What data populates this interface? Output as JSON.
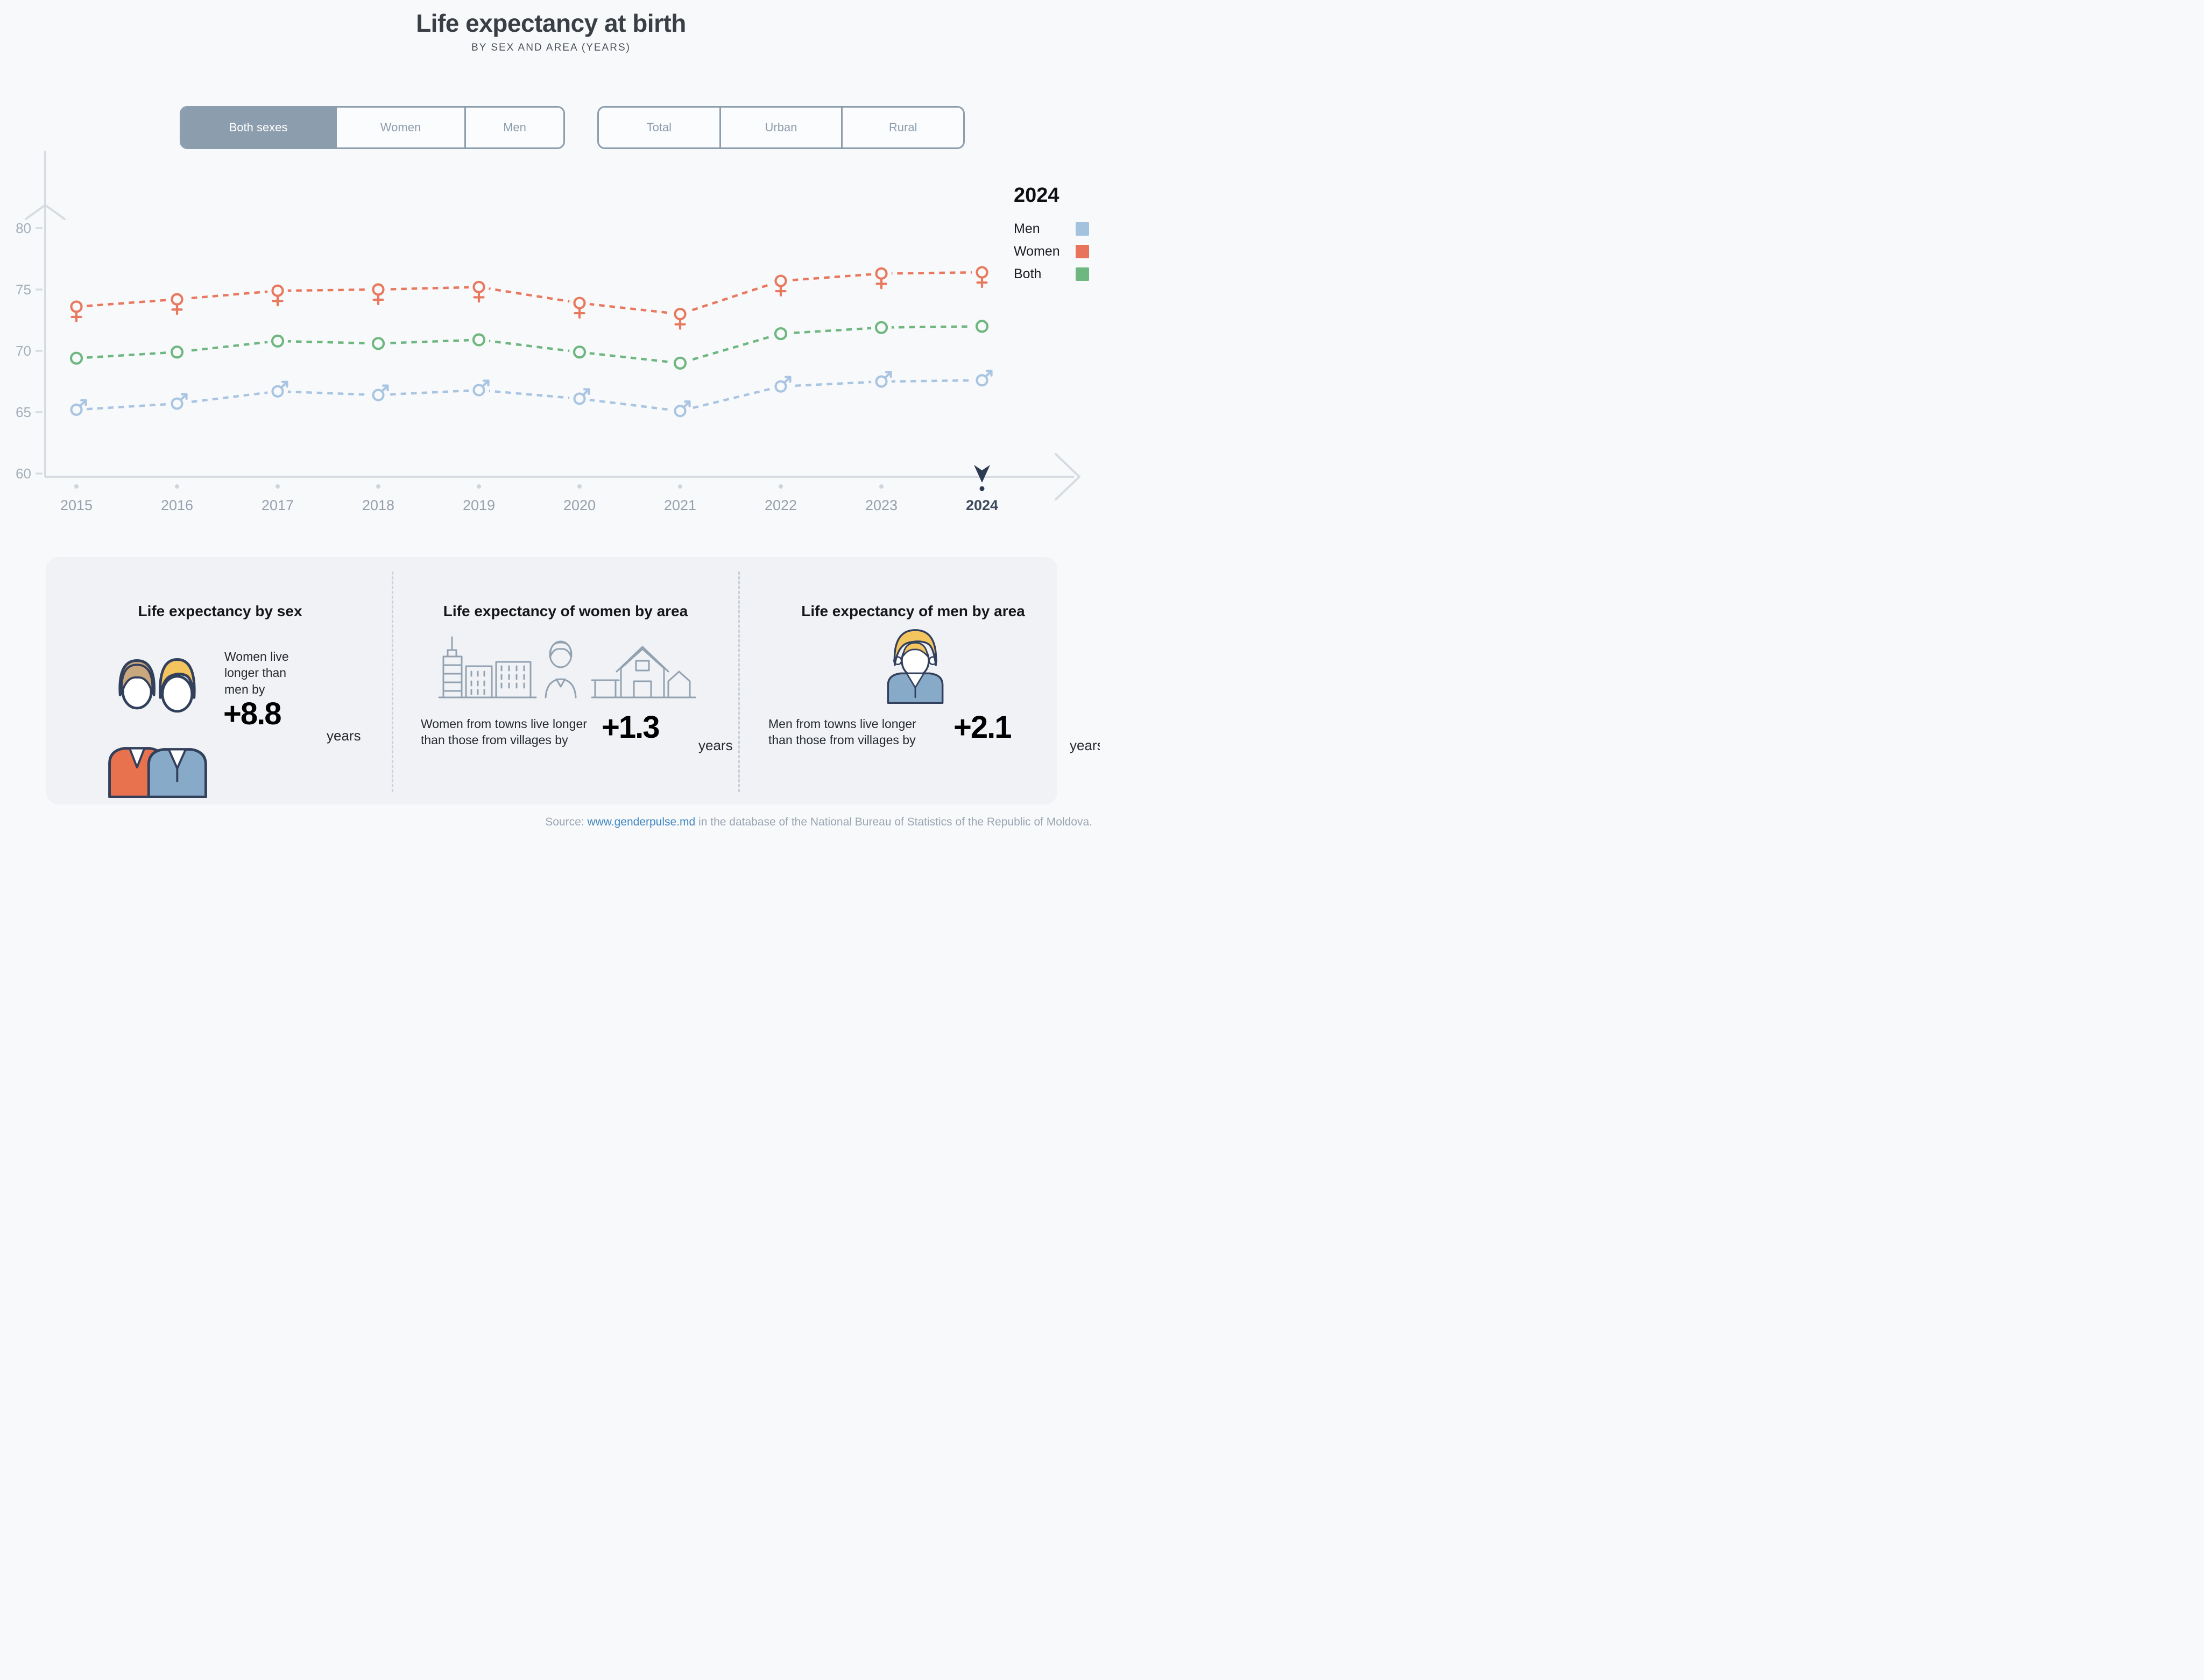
{
  "title": "Life expectancy at birth",
  "subtitle": "BY SEX AND AREA (YEARS)",
  "toggles": {
    "sex": {
      "options": [
        "Both sexes",
        "Women",
        "Men"
      ],
      "selected": "Both sexes"
    },
    "area": {
      "options": [
        "Total",
        "Urban",
        "Rural"
      ],
      "selected": null
    }
  },
  "legend": {
    "year": "2024",
    "items": [
      {
        "label": "Men",
        "color": "#A3C2DE"
      },
      {
        "label": "Women",
        "color": "#E8745C"
      },
      {
        "label": "Both",
        "color": "#6FB780"
      }
    ]
  },
  "chart_data": {
    "type": "line",
    "title": "Life expectancy at birth by sex and area (years)",
    "xlabel": "",
    "ylabel": "",
    "x": [
      2015,
      2016,
      2017,
      2018,
      2019,
      2020,
      2021,
      2022,
      2023,
      2024
    ],
    "series": [
      {
        "name": "Women",
        "color": "#E8795F",
        "marker": "female",
        "values": [
          73.6,
          74.2,
          74.9,
          75.0,
          75.2,
          73.9,
          73.0,
          75.7,
          76.3,
          76.4
        ]
      },
      {
        "name": "Both",
        "color": "#6FB780",
        "marker": "circle",
        "values": [
          69.4,
          69.9,
          70.8,
          70.6,
          70.9,
          69.9,
          69.0,
          71.4,
          71.9,
          72.0
        ]
      },
      {
        "name": "Men",
        "color": "#A9C5E2",
        "marker": "male",
        "values": [
          65.2,
          65.7,
          66.7,
          66.4,
          66.8,
          66.1,
          65.1,
          67.1,
          67.5,
          67.6
        ]
      }
    ],
    "ylim": [
      60,
      80
    ],
    "yticks": [
      80,
      75,
      70,
      65,
      60
    ],
    "selected_year": 2024,
    "grid": false,
    "legend_position": "top-right",
    "line_style": "dashed"
  },
  "stats": [
    {
      "heading": "Life expectancy by sex",
      "text": "Women live longer than men by",
      "value": "+8.8",
      "unit": "years",
      "icon": "woman-and-man"
    },
    {
      "heading": "Life expectancy of women by area",
      "text": "Women from towns live longer than those from villages by",
      "value": "+1.3",
      "unit": "years",
      "icon": "town-woman-village"
    },
    {
      "heading": "Life expectancy of men by area",
      "text": "Men from towns live longer than those from villages by",
      "value": "+2.1",
      "unit": "years",
      "icon": "man"
    }
  ],
  "source": {
    "label": "Source: ",
    "link": "www.genderpulse.md",
    "text": " in the database of the National Bureau of Statistics of the Republic of Moldova."
  },
  "colors": {
    "page_bg": "#F8F9FB",
    "panel_bg": "#F0F2F6",
    "toggle": "#8C9DAD",
    "toggle_selected_text": "#FFFFFF",
    "axis": "#D6DCE2",
    "tick_label": "#A3AFBA",
    "year_label": "#95A1AE",
    "year_selected": "#3D4A5C",
    "cursor": "#2C3A52",
    "timeline_dot": "#CDD5DD",
    "link": "#3E86C0",
    "source_text": "#9AA6B2",
    "divider": "#C9D1D9",
    "heading": "#141619",
    "body_text": "#26292D",
    "icon_outline": "#33405C",
    "icon_gray": "#93A2B1",
    "hair_blonde": "#F4C45F",
    "hair_brown": "#C9A87E",
    "suit": "#88AAC9",
    "jacket": "#E9724E"
  }
}
